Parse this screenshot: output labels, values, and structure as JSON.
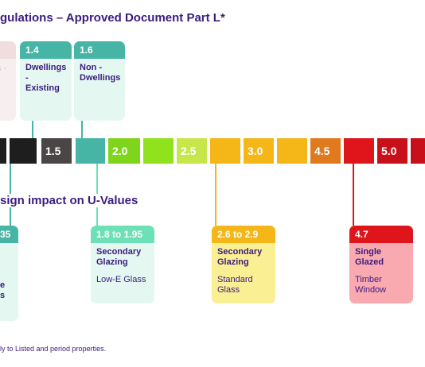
{
  "title": "gulations – Approved Document Part L*",
  "subtitle": "sign impact on U-Values",
  "top_cards": [
    {
      "label": "1.4",
      "lines": [
        "Dwellings -",
        "Existing"
      ],
      "color": "#47b5a6"
    },
    {
      "label": "1.6",
      "lines": [
        "Non -",
        "Dwellings"
      ],
      "color": "#47b5a6"
    }
  ],
  "faded_card_text": "gs -",
  "scale": [
    "1.5",
    "2.0",
    "2.5",
    "3.0",
    "4.5",
    "5.0"
  ],
  "bottom_cards": [
    {
      "label": "35",
      "lines": [
        "e",
        "s"
      ],
      "color": "#47b5a6"
    },
    {
      "label": "1.8 to 1.95",
      "title": [
        "Secondary",
        "Glazing"
      ],
      "note": "Low-E Glass",
      "color": "#6de0b8"
    },
    {
      "label": "2.6 to 2.9",
      "title": [
        "Secondary",
        "Glazing"
      ],
      "note": [
        "Standard",
        "Glass"
      ],
      "color": "#f5b618"
    },
    {
      "label": "4.7",
      "title": [
        "Single",
        "Glazed"
      ],
      "note": [
        "Timber",
        "Window"
      ],
      "color": "#e0141b"
    }
  ],
  "footnote": "ly to Listed and period properties."
}
